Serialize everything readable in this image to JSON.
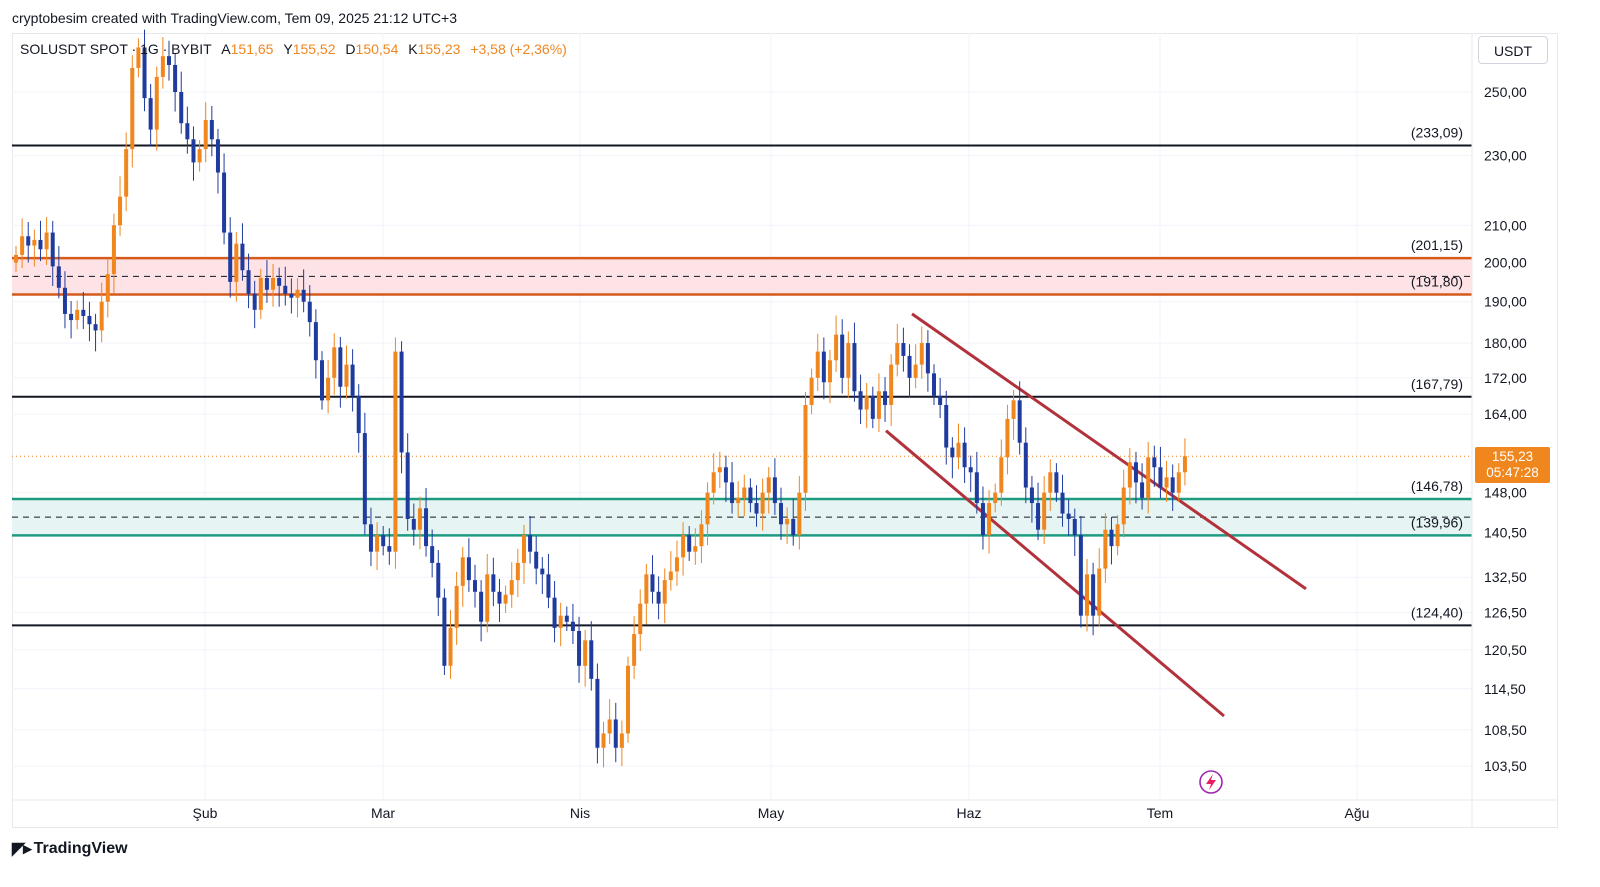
{
  "header": {
    "attribution": "cryptobesim created with TradingView.com, Tem 09, 2025 21:12 UTC+3"
  },
  "legend": {
    "symbol": "SOLUSDT SPOT · 1G · BYBIT",
    "open_label": "A",
    "open": "151,65",
    "high_label": "Y",
    "high": "155,52",
    "low_label": "D",
    "low": "150,54",
    "close_label": "K",
    "close": "155,23",
    "change": "+3,58 (+2,36%)"
  },
  "currency": "USDT",
  "price_badge": {
    "price": "155,23",
    "countdown": "05:47:28"
  },
  "footer": {
    "logo": "TradingView"
  },
  "colors": {
    "up": "#f0861e",
    "down": "#1f3b9e",
    "resistance_zone": "#fde3e6",
    "resistance_line": "#d45b1c",
    "support_zone": "#e6f5f3",
    "support_line": "#1f9b82",
    "channel": "#b2323c",
    "level": "#131722"
  },
  "chart_data": {
    "type": "candlestick",
    "title": "SOLUSDT SPOT · 1G · BYBIT",
    "ylabel": "USDT",
    "ylim": [
      98,
      272
    ],
    "y_scale": "log",
    "x_ticks": [
      "Şub",
      "Mar",
      "Nis",
      "May",
      "Haz",
      "Tem",
      "Ağu"
    ],
    "y_ticks": [
      "250,00",
      "230,00",
      "210,00",
      "200,00",
      "190,00",
      "180,00",
      "172,00",
      "164,00",
      "148,00",
      "140,50",
      "132,50",
      "126,50",
      "120,50",
      "114,50",
      "108,50",
      "103,50"
    ],
    "levels": [
      {
        "label": "(233,09)",
        "value": 233.09,
        "style": "solid"
      },
      {
        "label": "(201,15)",
        "value": 201.15,
        "style": "zone-top"
      },
      {
        "label": "(191,80)",
        "value": 191.8,
        "style": "zone-bottom"
      },
      {
        "label": "(167,79)",
        "value": 167.79,
        "style": "solid"
      },
      {
        "label": "(146,78)",
        "value": 146.78,
        "style": "zone-top"
      },
      {
        "label": "(139,96)",
        "value": 139.96,
        "style": "zone-bottom"
      },
      {
        "label": "(124,40)",
        "value": 124.4,
        "style": "solid"
      }
    ],
    "zones": [
      {
        "name": "resistance",
        "top": 201.15,
        "bottom": 191.8
      },
      {
        "name": "support",
        "top": 146.78,
        "bottom": 139.96
      }
    ],
    "current_price": 155.23,
    "closes": [
      202.0,
      207.0,
      204.5,
      206.0,
      203.5,
      208.0,
      199.0,
      193.5,
      187.0,
      185.5,
      188.0,
      186.5,
      184.5,
      183.0,
      190.0,
      197.0,
      210.0,
      218.0,
      232.0,
      258.0,
      265.0,
      248.0,
      238.0,
      255.0,
      262.0,
      259.0,
      250.0,
      240.0,
      235.0,
      228.0,
      232.0,
      241.0,
      235.0,
      225.0,
      208.0,
      195.0,
      205.0,
      198.0,
      192.0,
      188.0,
      196.0,
      193.0,
      196.0,
      194.0,
      192.0,
      191.0,
      193.0,
      190.0,
      185.0,
      176.0,
      167.0,
      172.0,
      179.0,
      170.0,
      175.0,
      168.0,
      160.0,
      142.0,
      137.0,
      140.0,
      138.0,
      137.0,
      178.0,
      156.0,
      143.0,
      141.0,
      145.0,
      138.0,
      135.0,
      129.0,
      118.0,
      124.0,
      131.0,
      136.0,
      132.0,
      130.0,
      125.0,
      133.0,
      130.0,
      128.0,
      129.5,
      132.0,
      135.0,
      140.0,
      137.0,
      134.0,
      133.0,
      129.0,
      124.0,
      126.0,
      125.0,
      123.5,
      118.0,
      122.0,
      116.0,
      106.0,
      108.0,
      110.0,
      106.0,
      108.0,
      118.0,
      123.0,
      128.0,
      133.0,
      130.0,
      128.0,
      132.0,
      133.5,
      136.0,
      140.0,
      137.0,
      138.0,
      142.0,
      148.0,
      152.0,
      153.0,
      150.0,
      146.0,
      147.0,
      149.0,
      146.0,
      144.0,
      148.0,
      151.0,
      146.0,
      142.0,
      143.0,
      140.0,
      148.0,
      166.0,
      172.0,
      178.0,
      171.0,
      176.0,
      182.0,
      172.0,
      180.0,
      169.0,
      165.0,
      168.0,
      163.0,
      169.0,
      166.0,
      175.0,
      180.0,
      177.0,
      172.0,
      175.0,
      180.0,
      173.0,
      168.0,
      166.0,
      157.0,
      155.0,
      158.0,
      153.0,
      152.0,
      146.0,
      140.0,
      146.0,
      148.0,
      155.0,
      163.0,
      167.0,
      158.0,
      149.0,
      146.0,
      141.0,
      148.0,
      152.0,
      148.0,
      144.0,
      143.0,
      140.0,
      126.0,
      133.0,
      126.0,
      134.0,
      141.0,
      138.0,
      142.0,
      149.0,
      154.0,
      150.0,
      147.0,
      155.0,
      153.0,
      149.0,
      151.0,
      148.0,
      152.0,
      155.23
    ]
  }
}
